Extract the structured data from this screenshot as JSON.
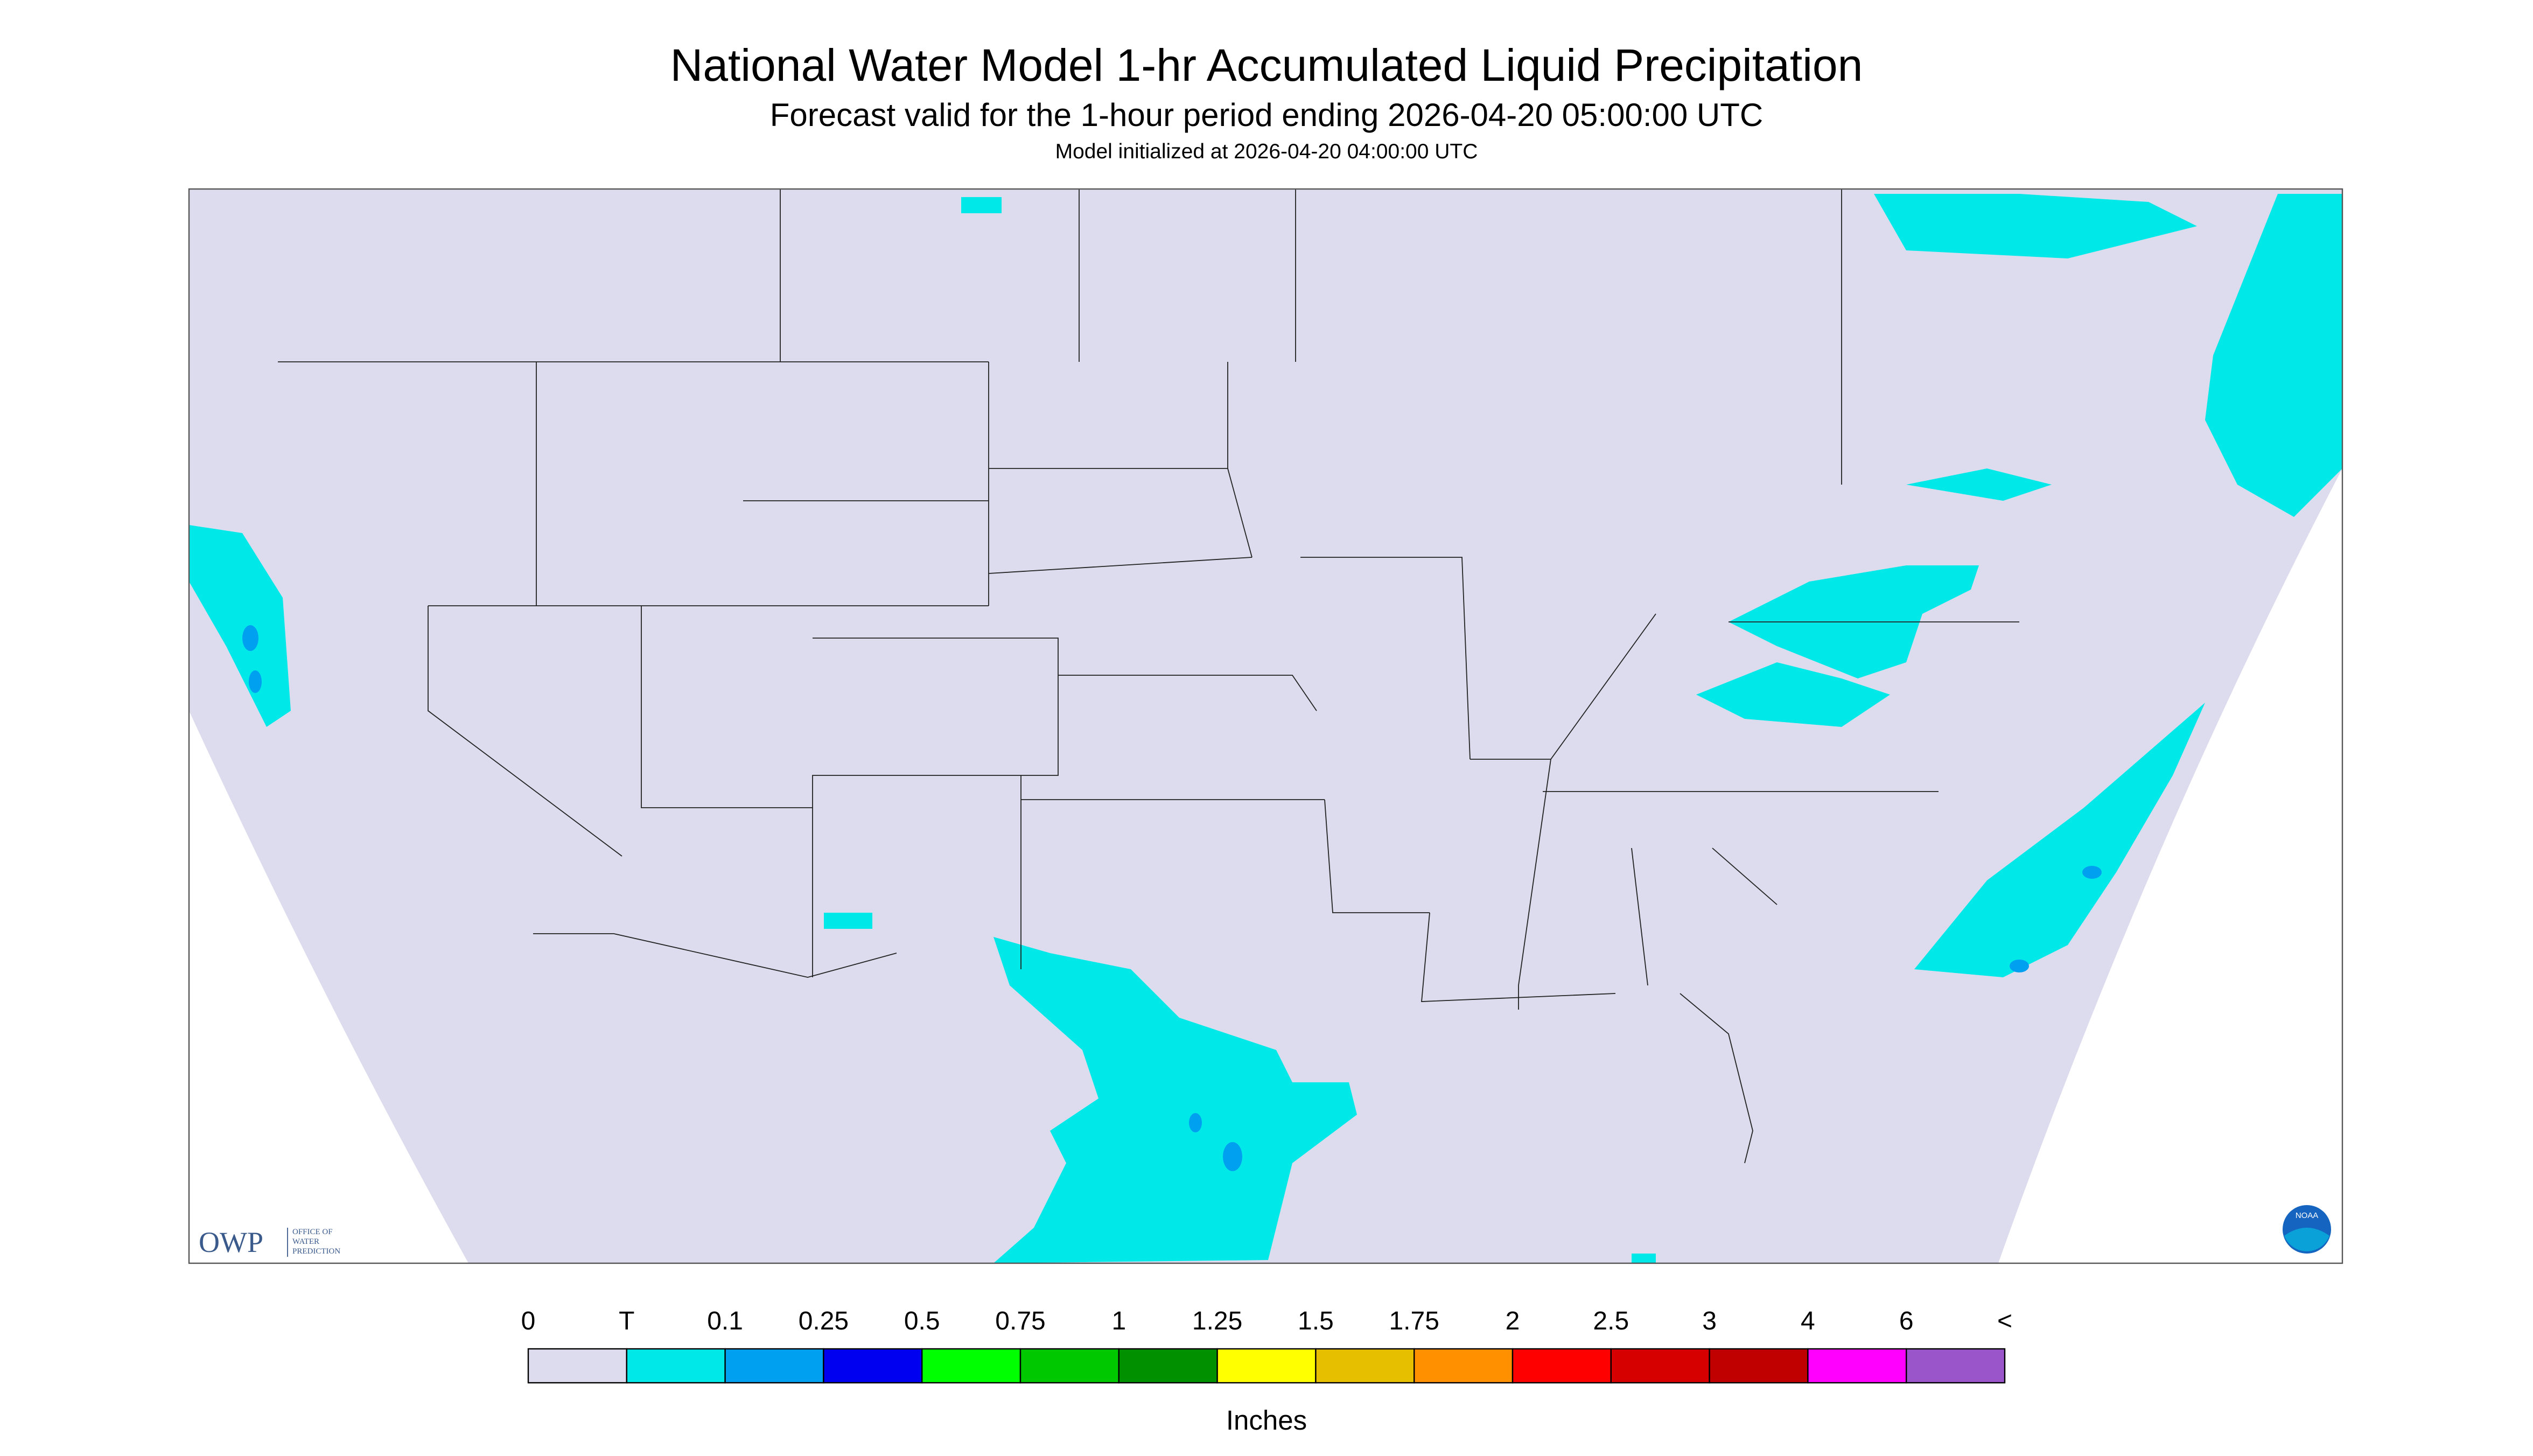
{
  "header": {
    "title": "National Water Model 1-hr Accumulated Liquid Precipitation",
    "subtitle": "Forecast valid for the 1-hour period ending 2026-04-20 05:00:00 UTC",
    "note": "Model initialized at 2026-04-20 04:00:00 UTC"
  },
  "logos": {
    "owp": "OWP",
    "owp_text": [
      "OFFICE OF",
      "WATER",
      "PREDICTION"
    ],
    "noaa": "NOAA"
  },
  "legend": {
    "labels": [
      "0",
      "T",
      "0.1",
      "0.25",
      "0.5",
      "0.75",
      "1",
      "1.25",
      "1.5",
      "1.75",
      "2",
      "2.5",
      "3",
      "4",
      "6",
      "<"
    ],
    "colors": [
      "#dcdcee",
      "#00e8e8",
      "#00a0f0",
      "#0000f0",
      "#00ff00",
      "#00c800",
      "#009000",
      "#ffff00",
      "#e6bf00",
      "#ff9000",
      "#ff0000",
      "#d60000",
      "#c00000",
      "#ff00ff",
      "#9955c9"
    ],
    "unit": "Inches"
  }
}
